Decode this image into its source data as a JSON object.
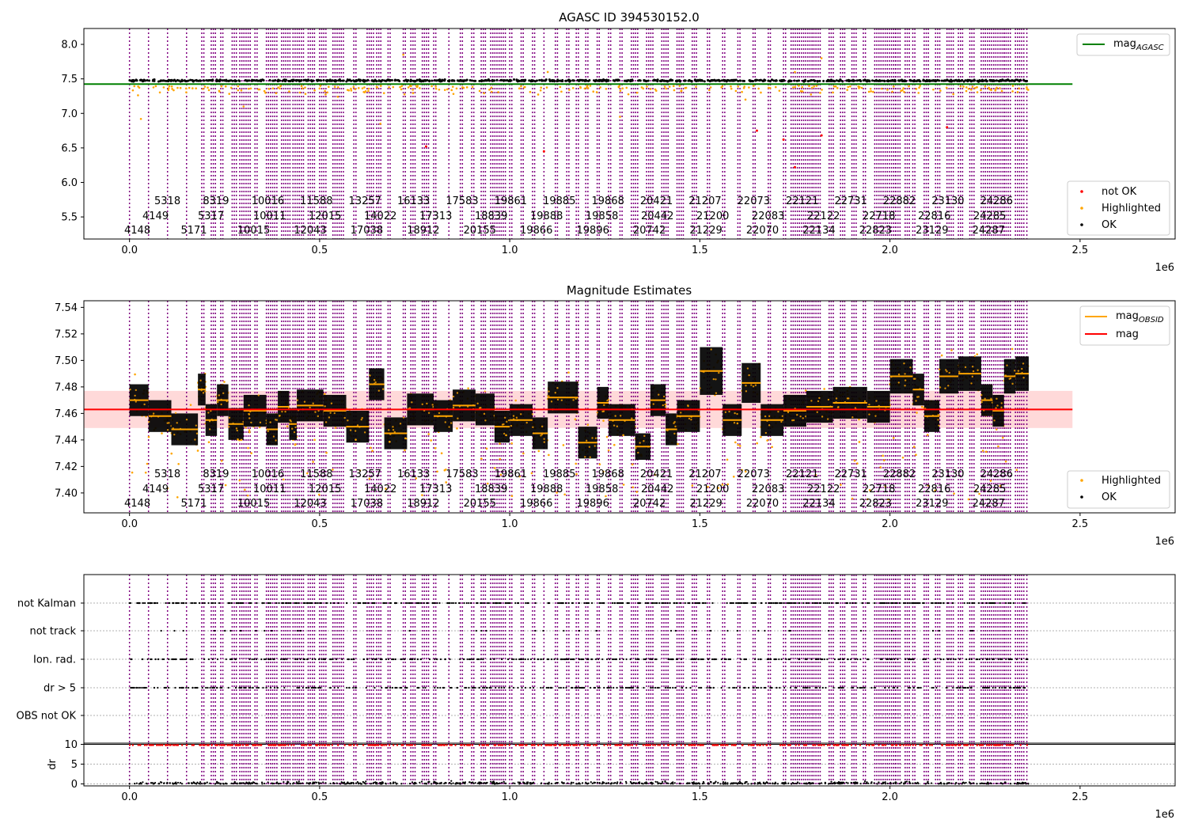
{
  "colors": {
    "obsid_line": "#800080",
    "agasc_line": "#008000",
    "mag_line": "#ff0000",
    "mag_band": "#ffc0c0",
    "obsid_mag_line": "#ffa500",
    "ok": "#000000",
    "highlighted": "#ffa500",
    "not_ok": "#ff0000",
    "grid": "#b0b0b0"
  },
  "axis_common": {
    "xlim": [
      -120000,
      2750000
    ],
    "x_ticks": [
      0.0,
      0.5,
      1.0,
      1.5,
      2.0,
      2.5
    ],
    "x_tick_labels": [
      "0.0",
      "0.5",
      "1.0",
      "1.5",
      "2.0",
      "2.5"
    ],
    "x_offset_label": "1e6"
  },
  "obsid_row_labels": {
    "row1": [
      "5318",
      "8319",
      "10016",
      "11588",
      "13257",
      "16133",
      "17583",
      "19861",
      "19885",
      "19868",
      "20421",
      "21207",
      "22073",
      "22121",
      "22731",
      "22882",
      "23130",
      "24286"
    ],
    "row2": [
      "4149",
      "5317",
      "10011",
      "12015",
      "14022",
      "17313",
      "18839",
      "19888",
      "19858",
      "20442",
      "21200",
      "22083",
      "22122",
      "22718",
      "22816",
      "24285"
    ],
    "row3": [
      "4148",
      "5171",
      "10015",
      "12043",
      "17038",
      "18912",
      "20155",
      "19866",
      "19896",
      "20742",
      "21229",
      "22070",
      "22134",
      "22823",
      "23129",
      "24287"
    ]
  },
  "chart_data": [
    {
      "type": "scatter",
      "title": "AGASC ID 394530152.0",
      "ylim": [
        5.18,
        8.23
      ],
      "y_ticks": [
        5.5,
        6.0,
        6.5,
        7.0,
        7.5,
        8.0
      ],
      "y_tick_labels": [
        "5.5",
        "6.0",
        "6.5",
        "7.0",
        "7.5",
        "8.0"
      ],
      "grid": false,
      "legend_placement": [
        "top-right",
        "bottom-right"
      ],
      "legend_top": [
        {
          "name": "mag",
          "sub": "AGASC",
          "color": "#008000",
          "kind": "line"
        }
      ],
      "legend_bottom": [
        {
          "name": "not OK",
          "color": "#ff0000",
          "kind": "dot"
        },
        {
          "name": "Highlighted",
          "color": "#ffa500",
          "kind": "dot"
        },
        {
          "name": "OK",
          "color": "#000000",
          "kind": "dot"
        }
      ],
      "series": [
        {
          "name": "OK",
          "values_summary": "dense band at 7.45-7.50 from x=0 to x=2.36e6"
        },
        {
          "name": "Highlighted",
          "values_summary": "scattered 7.0-7.45 with a few outliers to 6.9 and 7.9"
        },
        {
          "name": "not OK",
          "values_summary": "sparse points 6.2-7.4"
        }
      ],
      "mag_agasc": 7.425,
      "mag_agasc_x_range": [
        -120000,
        2480000
      ]
    },
    {
      "type": "scatter",
      "title": "Magnitude Estimates",
      "ylim": [
        7.385,
        7.545
      ],
      "y_ticks": [
        7.4,
        7.42,
        7.44,
        7.46,
        7.48,
        7.5,
        7.52,
        7.54
      ],
      "y_tick_labels": [
        "7.40",
        "7.42",
        "7.44",
        "7.46",
        "7.48",
        "7.50",
        "7.52",
        "7.54"
      ],
      "grid": false,
      "legend_placement": [
        "top-right",
        "bottom-right"
      ],
      "legend_top": [
        {
          "name": "mag",
          "sub": "OBSID",
          "color": "#ffa500",
          "kind": "line"
        },
        {
          "name": "mag",
          "sub": "",
          "color": "#ff0000",
          "kind": "line"
        }
      ],
      "legend_bottom": [
        {
          "name": "Highlighted",
          "color": "#ffa500",
          "kind": "dot"
        },
        {
          "name": "OK",
          "color": "#000000",
          "kind": "dot"
        }
      ],
      "mag": 7.463,
      "mag_band": [
        7.449,
        7.477
      ],
      "mag_x_range": [
        -120000,
        2480000
      ],
      "segments": [
        [
          0,
          50000,
          7.47,
          0.012
        ],
        [
          50000,
          110000,
          7.458,
          0.012
        ],
        [
          110000,
          180000,
          7.448,
          0.012
        ],
        [
          180000,
          200000,
          7.478,
          0.012
        ],
        [
          200000,
          230000,
          7.455,
          0.012
        ],
        [
          230000,
          260000,
          7.47,
          0.012
        ],
        [
          260000,
          300000,
          7.452,
          0.012
        ],
        [
          300000,
          360000,
          7.462,
          0.012
        ],
        [
          360000,
          390000,
          7.448,
          0.012
        ],
        [
          390000,
          420000,
          7.465,
          0.012
        ],
        [
          420000,
          440000,
          7.452,
          0.012
        ],
        [
          440000,
          510000,
          7.466,
          0.012
        ],
        [
          510000,
          570000,
          7.462,
          0.012
        ],
        [
          570000,
          630000,
          7.45,
          0.012
        ],
        [
          630000,
          670000,
          7.482,
          0.012
        ],
        [
          670000,
          730000,
          7.445,
          0.012
        ],
        [
          730000,
          800000,
          7.463,
          0.012
        ],
        [
          800000,
          850000,
          7.458,
          0.012
        ],
        [
          850000,
          910000,
          7.466,
          0.012
        ],
        [
          910000,
          960000,
          7.463,
          0.012
        ],
        [
          960000,
          1000000,
          7.45,
          0.012
        ],
        [
          1000000,
          1060000,
          7.455,
          0.012
        ],
        [
          1060000,
          1100000,
          7.445,
          0.012
        ],
        [
          1100000,
          1180000,
          7.472,
          0.012
        ],
        [
          1180000,
          1230000,
          7.438,
          0.012
        ],
        [
          1230000,
          1260000,
          7.468,
          0.012
        ],
        [
          1260000,
          1330000,
          7.455,
          0.012
        ],
        [
          1330000,
          1370000,
          7.435,
          0.01
        ],
        [
          1370000,
          1410000,
          7.47,
          0.012
        ],
        [
          1410000,
          1440000,
          7.448,
          0.012
        ],
        [
          1440000,
          1500000,
          7.458,
          0.012
        ],
        [
          1500000,
          1560000,
          7.492,
          0.018
        ],
        [
          1560000,
          1610000,
          7.455,
          0.012
        ],
        [
          1610000,
          1660000,
          7.483,
          0.015
        ],
        [
          1660000,
          1720000,
          7.455,
          0.012
        ],
        [
          1720000,
          1780000,
          7.462,
          0.012
        ],
        [
          1780000,
          1850000,
          7.465,
          0.012
        ],
        [
          1850000,
          1940000,
          7.468,
          0.012
        ],
        [
          1940000,
          2000000,
          7.465,
          0.012
        ],
        [
          2000000,
          2060000,
          7.488,
          0.013
        ],
        [
          2060000,
          2090000,
          7.478,
          0.012
        ],
        [
          2090000,
          2130000,
          7.458,
          0.012
        ],
        [
          2130000,
          2180000,
          7.488,
          0.013
        ],
        [
          2180000,
          2240000,
          7.49,
          0.013
        ],
        [
          2240000,
          2270000,
          7.47,
          0.012
        ],
        [
          2270000,
          2300000,
          7.462,
          0.012
        ],
        [
          2300000,
          2330000,
          7.488,
          0.013
        ],
        [
          2330000,
          2365000,
          7.49,
          0.013
        ]
      ]
    },
    {
      "type": "scatter",
      "title": "",
      "y_category_ticks": [
        "not Kalman",
        "not track",
        "Ion. rad.",
        "dr > 5",
        "OBS not OK"
      ],
      "grid": true,
      "series": [
        {
          "name": "not Kalman",
          "values_summary": "dense flags along 0-2.36e6"
        },
        {
          "name": "not track",
          "values_summary": "sparse flags"
        },
        {
          "name": "Ion. rad.",
          "values_summary": "dense flags with gaps"
        },
        {
          "name": "dr > 5",
          "values_summary": "dense flags with gaps"
        },
        {
          "name": "OBS not OK",
          "values_summary": "none"
        }
      ]
    },
    {
      "type": "scatter",
      "title": "",
      "ylabel": "dr",
      "ylim": [
        -0.5,
        10.3
      ],
      "y_ticks": [
        0,
        5,
        10
      ],
      "y_tick_labels": [
        "0",
        "5",
        "10"
      ],
      "grid": true,
      "threshold": 10,
      "series": [
        {
          "name": "OK",
          "values_summary": "dr near 0-1"
        },
        {
          "name": "not OK",
          "values_summary": "dr clipped at 10"
        }
      ]
    }
  ]
}
